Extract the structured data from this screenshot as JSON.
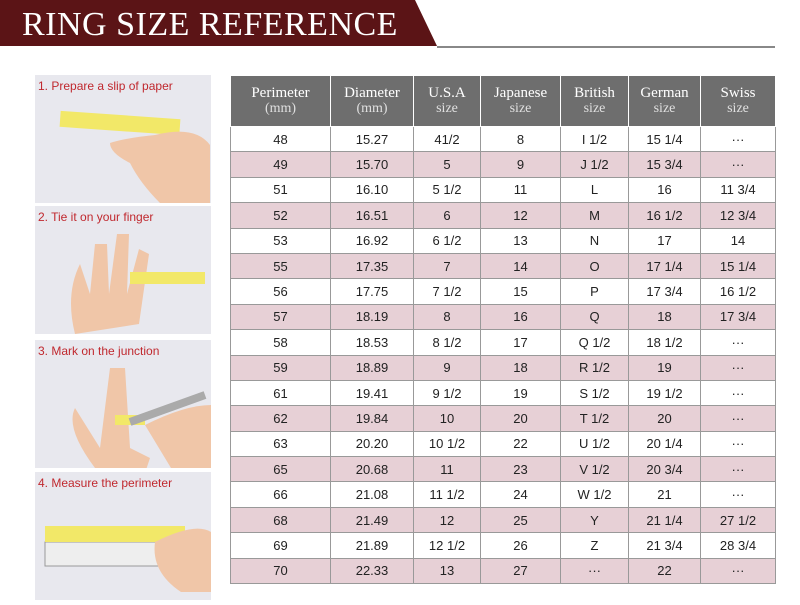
{
  "header": {
    "title": "RING SIZE REFERENCE"
  },
  "steps": [
    "1. Prepare a slip of paper",
    "2. Tie it on your finger",
    "3. Mark on the junction",
    "4. Measure the perimeter"
  ],
  "table": {
    "columns": [
      {
        "name": "Perimeter",
        "unit": "(mm)"
      },
      {
        "name": "Diameter",
        "unit": "(mm)"
      },
      {
        "name": "U.S.A",
        "unit": "size"
      },
      {
        "name": "Japanese",
        "unit": "size"
      },
      {
        "name": "British",
        "unit": "size"
      },
      {
        "name": "German",
        "unit": "size"
      },
      {
        "name": "Swiss",
        "unit": "size"
      }
    ],
    "rows": [
      [
        "48",
        "15.27",
        "41/2",
        "8",
        "I 1/2",
        "15 1/4",
        "···"
      ],
      [
        "49",
        "15.70",
        "5",
        "9",
        "J 1/2",
        "15 3/4",
        "···"
      ],
      [
        "51",
        "16.10",
        "5 1/2",
        "11",
        "L",
        "16",
        "11 3/4"
      ],
      [
        "52",
        "16.51",
        "6",
        "12",
        "M",
        "16 1/2",
        "12 3/4"
      ],
      [
        "53",
        "16.92",
        "6 1/2",
        "13",
        "N",
        "17",
        "14"
      ],
      [
        "55",
        "17.35",
        "7",
        "14",
        "O",
        "17 1/4",
        "15 1/4"
      ],
      [
        "56",
        "17.75",
        "7 1/2",
        "15",
        "P",
        "17 3/4",
        "16 1/2"
      ],
      [
        "57",
        "18.19",
        "8",
        "16",
        "Q",
        "18",
        "17 3/4"
      ],
      [
        "58",
        "18.53",
        "8 1/2",
        "17",
        "Q 1/2",
        "18 1/2",
        "···"
      ],
      [
        "59",
        "18.89",
        "9",
        "18",
        "R 1/2",
        "19",
        "···"
      ],
      [
        "61",
        "19.41",
        "9 1/2",
        "19",
        "S 1/2",
        "19 1/2",
        "···"
      ],
      [
        "62",
        "19.84",
        "10",
        "20",
        "T 1/2",
        "20",
        "···"
      ],
      [
        "63",
        "20.20",
        "10 1/2",
        "22",
        "U 1/2",
        "20 1/4",
        "···"
      ],
      [
        "65",
        "20.68",
        "11",
        "23",
        "V 1/2",
        "20 3/4",
        "···"
      ],
      [
        "66",
        "21.08",
        "11 1/2",
        "24",
        "W 1/2",
        "21",
        "···"
      ],
      [
        "68",
        "21.49",
        "12",
        "25",
        "Y",
        "21 1/4",
        "27 1/2"
      ],
      [
        "69",
        "21.89",
        "12 1/2",
        "26",
        "Z",
        "21 3/4",
        "28 3/4"
      ],
      [
        "70",
        "22.33",
        "13",
        "27",
        "···",
        "22",
        "···"
      ]
    ]
  }
}
